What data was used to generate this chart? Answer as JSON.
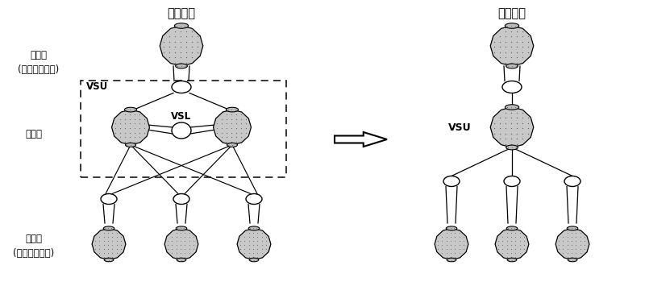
{
  "title_left": "物理视图",
  "title_right": "逻辑视图",
  "label_core": "核心层\n(上联对端设备)",
  "label_agg": "汇聚层",
  "label_access": "接入层\n(下联对端设备)",
  "label_vsu_box": "VSU",
  "label_vsl": "VSL",
  "label_vsu_right": "VSU",
  "bg_color": "#ffffff",
  "line_color": "#000000"
}
